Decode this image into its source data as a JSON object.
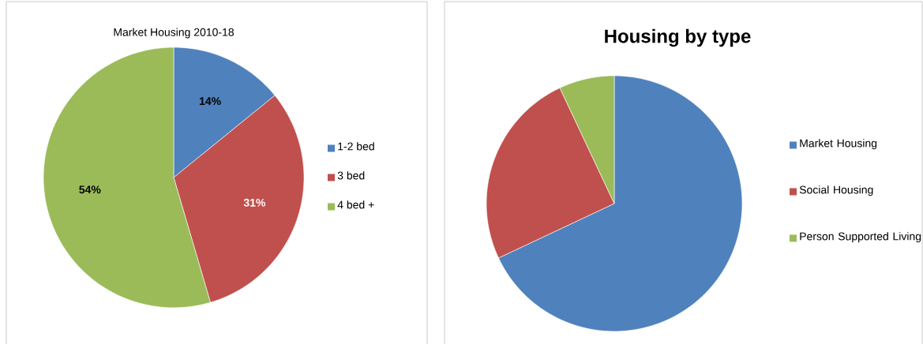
{
  "chart_data": [
    {
      "type": "pie",
      "title": "Market Housing 2010-18",
      "categories": [
        "1-2 bed",
        "3 bed",
        "4 bed +"
      ],
      "values": [
        14,
        31,
        54
      ],
      "value_labels": [
        "14%",
        "31%",
        "54%"
      ],
      "colors": [
        "#4f81bd",
        "#c0504d",
        "#9bbb59"
      ],
      "legend": "right"
    },
    {
      "type": "pie",
      "title": "Housing by type",
      "categories": [
        "Market Housing",
        "Social Housing",
        "Person Supported Living"
      ],
      "values": [
        68,
        25,
        7
      ],
      "colors": [
        "#4f81bd",
        "#c0504d",
        "#9bbb59"
      ],
      "legend": "right"
    }
  ]
}
